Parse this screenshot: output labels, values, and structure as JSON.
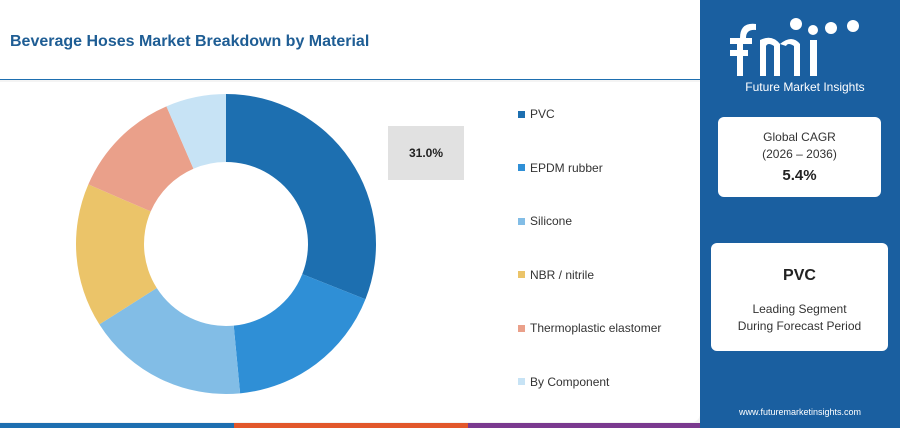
{
  "title": "Beverage Hoses Market Breakdown by Material",
  "highlight_value": "31.0%",
  "brand": {
    "logo_name": "fmi",
    "tagline": "Future Market Insights",
    "website": "www.futuremarketinsights.com"
  },
  "cagr": {
    "label_line1": "Global CAGR",
    "label_line2": "(2026 – 2036)",
    "value": "5.4%"
  },
  "leading": {
    "name": "PVC",
    "label_line1": "Leading Segment",
    "label_line2": "During Forecast Period"
  },
  "colors": {
    "title": "#1e5d94",
    "panel": "#1a5fa0"
  },
  "chart_data": {
    "type": "pie",
    "donut": true,
    "title": "Beverage Hoses Market Breakdown by Material",
    "categories": [
      "PVC",
      "EPDM rubber",
      "Silicone",
      "NBR / nitrile",
      "Thermoplastic elastomer",
      "By Component"
    ],
    "values": [
      31.0,
      17.5,
      17.5,
      15.5,
      12.0,
      6.5
    ],
    "colors": [
      "#1d6fb0",
      "#2f8fd6",
      "#82bde6",
      "#ebc469",
      "#eaa08a",
      "#c7e3f5"
    ],
    "legend": "right"
  }
}
